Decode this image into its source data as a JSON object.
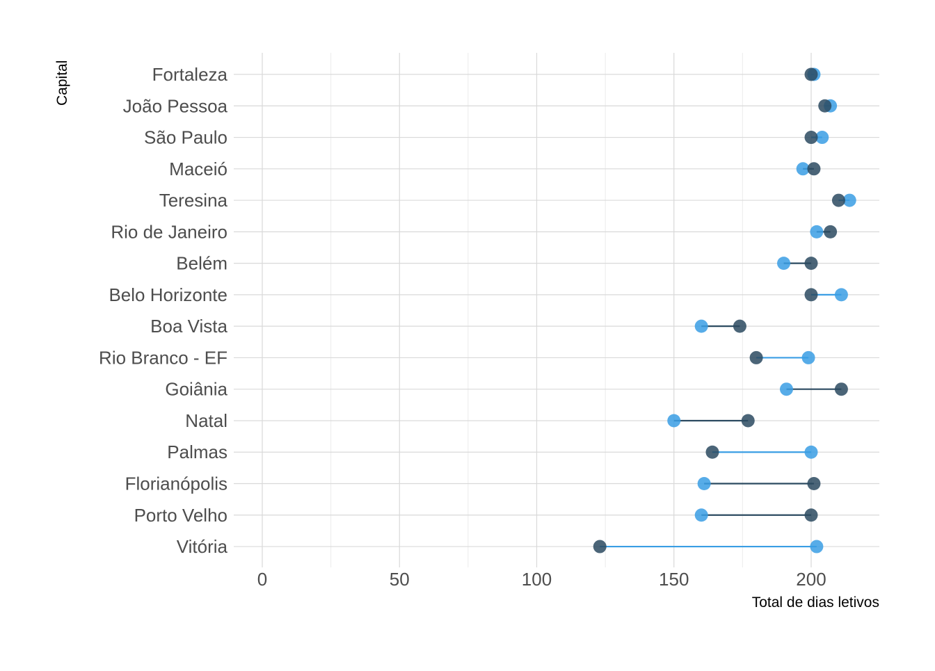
{
  "chart_data": {
    "type": "dumbbell",
    "xlabel": "Total de dias letivos",
    "ylabel": "Capital",
    "xlim": [
      -10,
      225
    ],
    "xticks": [
      0,
      50,
      100,
      150,
      200
    ],
    "grid": true,
    "legend": "none",
    "colors": {
      "dark": "#2b4a60",
      "light": "#3a9ee4"
    },
    "series": [
      {
        "color": "dark",
        "values": [
          200,
          205,
          200,
          201,
          210,
          207,
          200,
          200,
          174,
          180,
          211,
          177,
          164,
          201,
          200,
          123
        ]
      },
      {
        "color": "light",
        "values": [
          201,
          207,
          204,
          197,
          214,
          202,
          190,
          211,
          160,
          199,
          191,
          150,
          200,
          161,
          160,
          202
        ]
      }
    ],
    "categories": [
      "Fortaleza",
      "João Pessoa",
      "São Paulo",
      "Maceió",
      "Teresina",
      "Rio de Janeiro",
      "Belém",
      "Belo Horizonte",
      "Boa Vista",
      "Rio Branco - EF",
      "Goiânia",
      "Natal",
      "Palmas",
      "Florianópolis ",
      "Porto Velho",
      "Vitória "
    ]
  }
}
